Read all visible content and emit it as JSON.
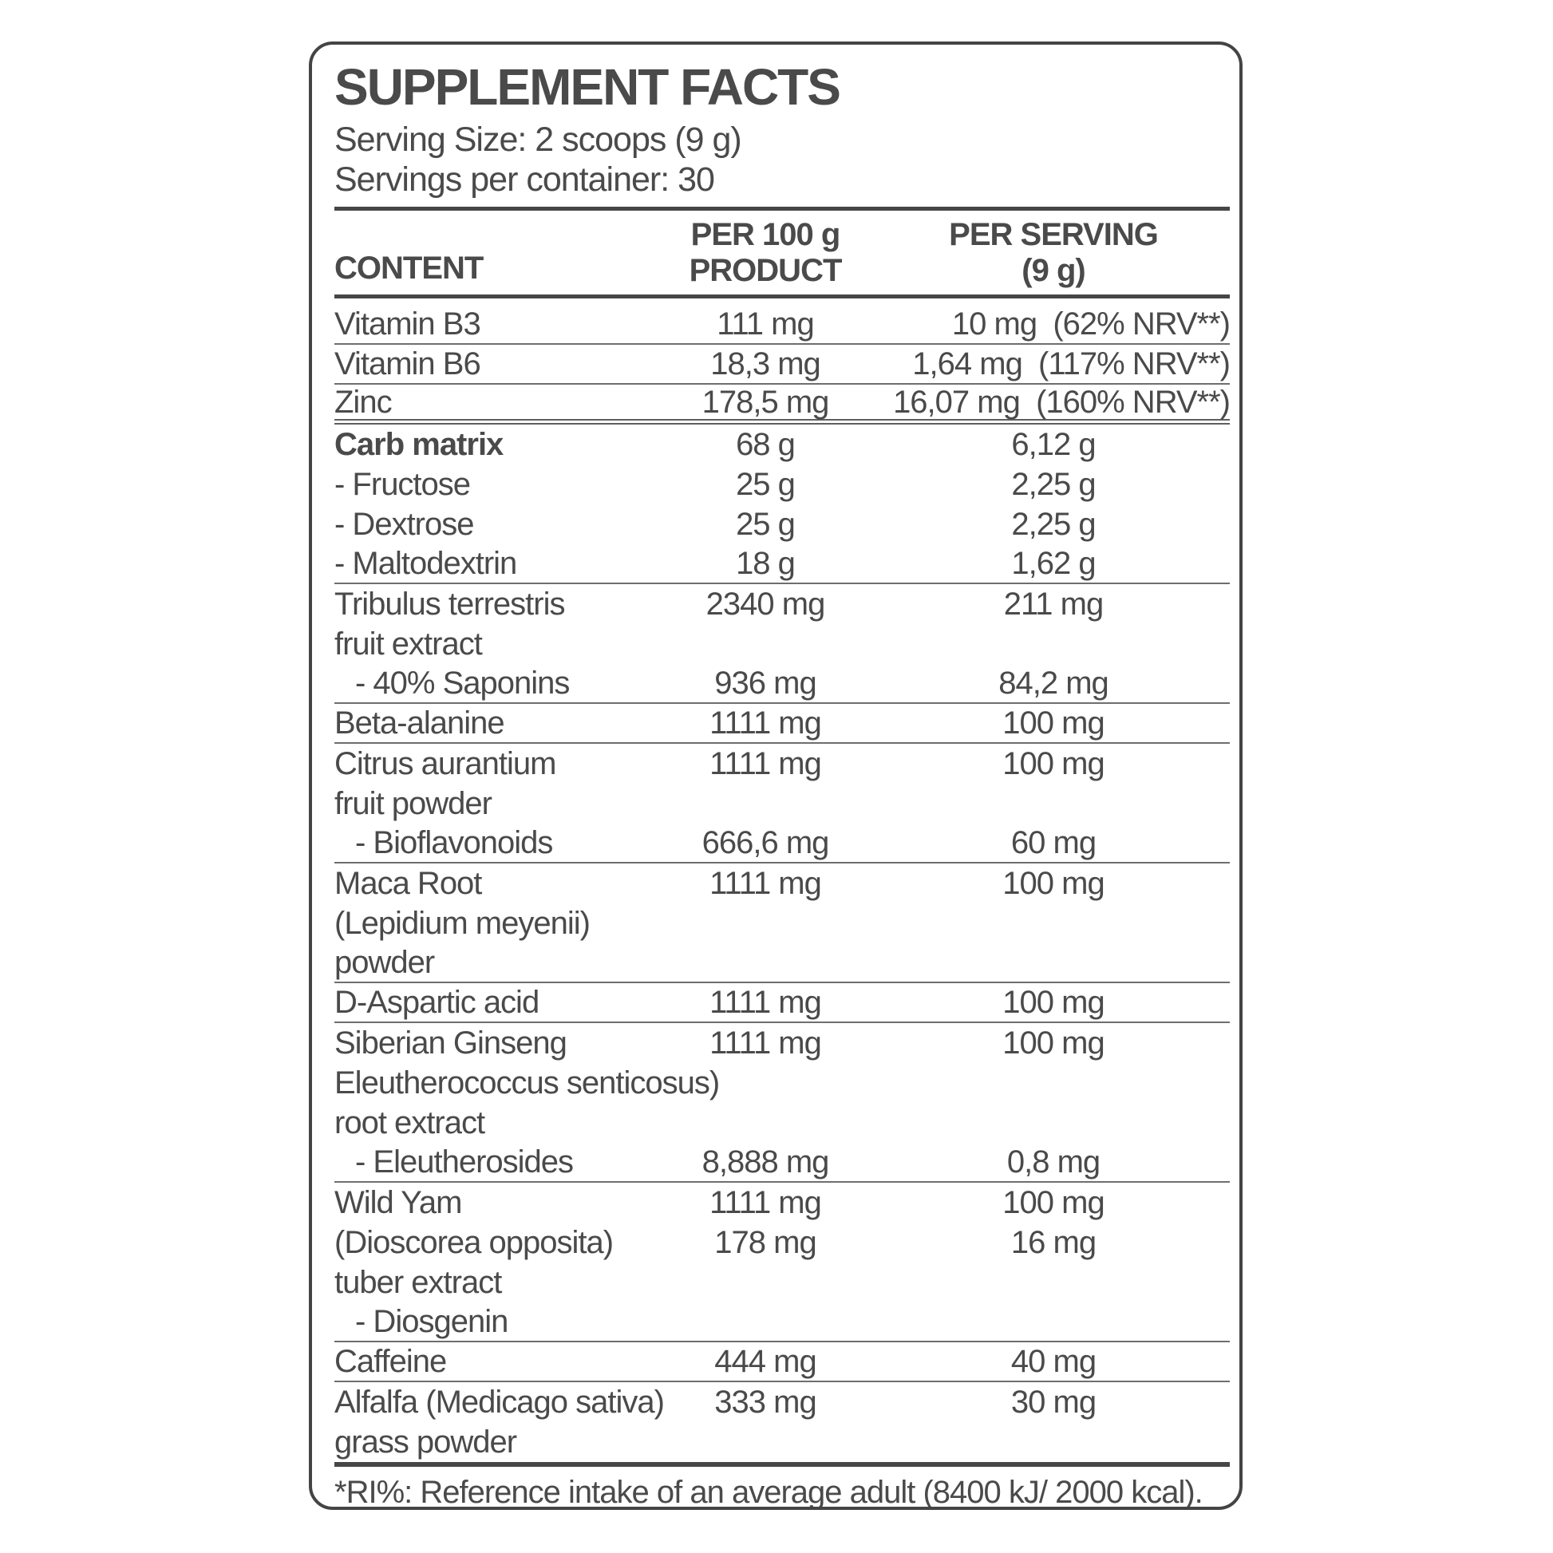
{
  "label": {
    "title": "SUPPLEMENT FACTS",
    "serving_size": "Serving Size: 2 scoops (9 g)",
    "servings_per_container": "Servings per container: 30",
    "footnote": "*RI%: Reference intake of an average adult (8400 kJ/ 2000 kcal)."
  },
  "table": {
    "headers": {
      "content": "CONTENT",
      "per100_line1": "PER 100 g",
      "per100_line2": "PRODUCT",
      "serving_line1": "PER SERVING",
      "serving_line2": "(9 g)"
    },
    "rows": [
      {
        "name": "Vitamin B3",
        "per100": "111 mg",
        "serving": "10 mg",
        "nrv": "(62% NRV**)",
        "sep": "thin"
      },
      {
        "name": "Vitamin B6",
        "per100": "18,3 mg",
        "serving": "1,64 mg",
        "nrv": "(117% NRV**)",
        "sep": "thin"
      },
      {
        "name": "Zinc",
        "per100": "178,5 mg",
        "serving": "16,07 mg",
        "nrv": "(160% NRV**)",
        "sep": "double"
      },
      {
        "name": "Carb matrix",
        "per100": "68 g",
        "serving": "6,12 g",
        "bold": true
      },
      {
        "name": "- Fructose",
        "per100": "25 g",
        "serving": "2,25 g"
      },
      {
        "name": "- Dextrose",
        "per100": "25 g",
        "serving": "2,25 g"
      },
      {
        "name": "- Maltodextrin",
        "per100": "18 g",
        "serving": "1,62 g",
        "sep": "thin"
      },
      {
        "name": "Tribulus terrestris",
        "per100": "2340 mg",
        "serving": "211 mg"
      },
      {
        "name": "fruit extract"
      },
      {
        "name": "- 40% Saponins",
        "per100": "936 mg",
        "serving": "84,2 mg",
        "indent": 1,
        "sep": "thin"
      },
      {
        "name": "Beta-alanine",
        "per100": "1111 mg",
        "serving": "100 mg",
        "sep": "thin"
      },
      {
        "name": "Citrus aurantium",
        "per100": "1111 mg",
        "serving": "100 mg"
      },
      {
        "name": "fruit powder"
      },
      {
        "name": "- Bioflavonoids",
        "per100": "666,6 mg",
        "serving": "60 mg",
        "indent": 1,
        "sep": "thin"
      },
      {
        "name": "Maca Root",
        "per100": "1111 mg",
        "serving": "100 mg"
      },
      {
        "name": "(Lepidium meyenii)"
      },
      {
        "name": "powder",
        "sep": "thin"
      },
      {
        "name": "D-Aspartic acid",
        "per100": "1111 mg",
        "serving": "100 mg",
        "sep": "thin"
      },
      {
        "name": "Siberian Ginseng",
        "per100": "1111 mg",
        "serving": "100 mg"
      },
      {
        "name": "Eleutherococcus senticosus)"
      },
      {
        "name": "root extract"
      },
      {
        "name": "- Eleutherosides",
        "per100": "8,888 mg",
        "serving": "0,8 mg",
        "indent": 1,
        "sep": "thin"
      },
      {
        "name": "Wild Yam",
        "per100": "1111 mg",
        "serving": "100 mg"
      },
      {
        "name": "(Dioscorea opposita)",
        "per100": "178 mg",
        "serving": "16 mg"
      },
      {
        "name": "tuber extract"
      },
      {
        "name": "- Diosgenin",
        "indent": 1,
        "sep": "thin"
      },
      {
        "name": "Caffeine",
        "per100": "444 mg",
        "serving": "40 mg",
        "sep": "thin"
      },
      {
        "name": "Alfalfa (Medicago sativa)",
        "per100": "333 mg",
        "serving": "30 mg"
      },
      {
        "name": "grass powder"
      }
    ]
  },
  "colors": {
    "text": "#4a4a4a",
    "border": "#444444",
    "thick_rule": "#464646",
    "row_line": "#6e6e6e"
  }
}
